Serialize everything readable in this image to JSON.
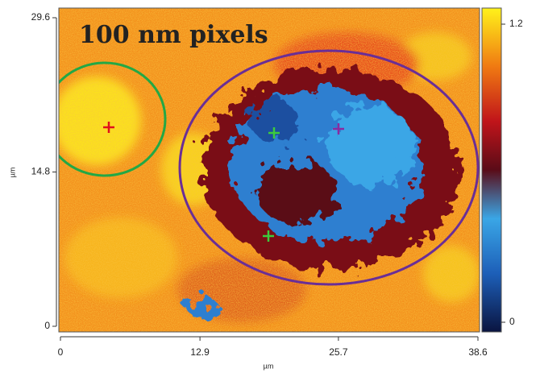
{
  "chart_data": {
    "type": "heatmap",
    "annotation": "100 nm pixels",
    "xlabel": "µm",
    "ylabel": "µm",
    "xlim": [
      0,
      38.6
    ],
    "xticks": [
      0,
      12.9,
      25.7,
      38.6
    ],
    "ylim": [
      0,
      29.6
    ],
    "yticks": [
      0,
      14.8,
      29.6
    ],
    "colorbar": {
      "lim": [
        0,
        1.2
      ],
      "ticks": [
        0,
        1.2
      ]
    }
  }
}
